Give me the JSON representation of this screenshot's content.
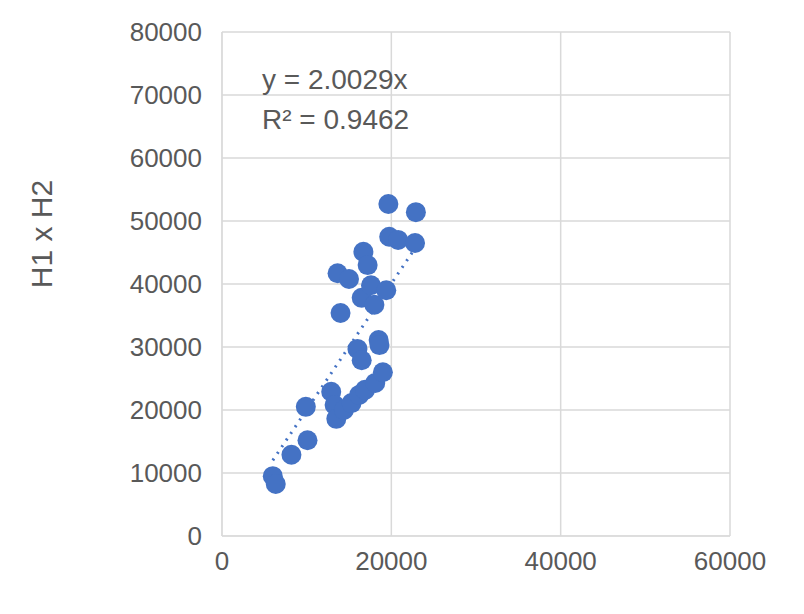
{
  "chart_data": {
    "type": "scatter",
    "y_label": "H1 x H2",
    "x": [
      6000,
      6350,
      8200,
      9900,
      10100,
      12900,
      13300,
      13500,
      13650,
      14000,
      15000,
      14400,
      15300,
      16000,
      16500,
      16200,
      16700,
      17200,
      16500,
      16900,
      17600,
      18000,
      18100,
      18500,
      18600,
      19000,
      19400,
      19650,
      19750,
      20800,
      22900,
      22800
    ],
    "values": [
      9500,
      8250,
      12900,
      20500,
      15200,
      22900,
      20800,
      18600,
      41700,
      35400,
      40800,
      20000,
      21100,
      29700,
      27900,
      22400,
      45100,
      43000,
      37800,
      23200,
      39800,
      36700,
      24300,
      31100,
      30300,
      26000,
      39000,
      52700,
      47500,
      47000,
      51400,
      46500
    ],
    "color": "#4472c4",
    "marker": "circle",
    "xlim": [
      0,
      60000
    ],
    "ylim": [
      0,
      80000
    ],
    "xticks": [
      0,
      20000,
      40000,
      60000
    ],
    "yticks": [
      0,
      10000,
      20000,
      30000,
      40000,
      50000,
      60000,
      70000,
      80000
    ],
    "grid": true,
    "trendline": {
      "slope": 2.0029,
      "r_squared": 0.9462,
      "line_style": "dotted"
    },
    "annotations": [
      "y = 2.0029x",
      "R² = 0.9462"
    ]
  }
}
